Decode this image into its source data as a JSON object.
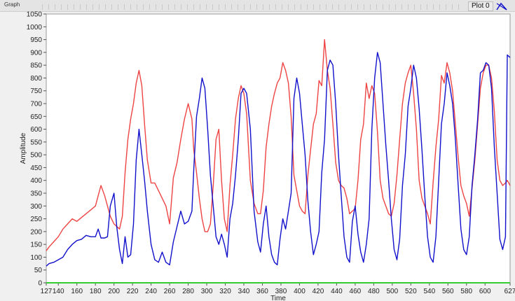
{
  "graph": {
    "label": "Graph",
    "legend_label": "Plot 0"
  },
  "chart_data": {
    "type": "line",
    "title": "",
    "xlabel": "Time",
    "ylabel": "Amplitude",
    "xlim": [
      127,
      627
    ],
    "ylim": [
      0,
      1050
    ],
    "x_ticks": [
      127,
      140,
      160,
      180,
      200,
      220,
      240,
      260,
      280,
      300,
      320,
      340,
      360,
      380,
      400,
      420,
      440,
      460,
      480,
      500,
      520,
      540,
      560,
      580,
      600,
      627
    ],
    "y_ticks": [
      0,
      50,
      100,
      150,
      200,
      250,
      300,
      350,
      400,
      450,
      500,
      550,
      600,
      650,
      700,
      750,
      800,
      850,
      900,
      950,
      1000,
      1050
    ],
    "grid": false,
    "colors": {
      "red": "#ee4444",
      "blue": "#1111cc",
      "green": "#33cc33",
      "plot_bg": "#ffffff"
    },
    "series": [
      {
        "color": "#ee4444",
        "x": [
          127,
          130,
          135,
          140,
          145,
          150,
          155,
          160,
          165,
          170,
          175,
          180,
          183,
          186,
          190,
          193,
          196,
          200,
          203,
          206,
          209,
          212,
          215,
          218,
          221,
          224,
          227,
          230,
          233,
          236,
          240,
          244,
          248,
          252,
          256,
          260,
          264,
          268,
          272,
          276,
          280,
          284,
          286,
          289,
          292,
          295,
          298,
          301,
          304,
          307,
          310,
          313,
          316,
          319,
          322,
          325,
          328,
          331,
          334,
          337,
          340,
          343,
          347,
          351,
          355,
          358,
          361,
          364,
          367,
          370,
          373,
          376,
          379,
          382,
          385,
          388,
          391,
          394,
          397,
          400,
          403,
          406,
          409,
          412,
          415,
          418,
          421,
          424,
          427,
          430,
          433,
          436,
          439,
          442,
          445,
          448,
          451,
          454,
          457,
          460,
          463,
          466,
          469,
          472,
          475,
          478,
          481,
          484,
          487,
          490,
          493,
          496,
          499,
          502,
          505,
          508,
          511,
          514,
          517,
          520,
          523,
          526,
          529,
          532,
          535,
          538,
          541,
          544,
          547,
          550,
          553,
          556,
          559,
          562,
          565,
          568,
          571,
          574,
          577,
          580,
          583,
          586,
          589,
          592,
          595,
          598,
          601,
          604,
          607,
          610,
          613,
          616,
          619,
          622,
          624,
          627
        ],
        "y": [
          125,
          140,
          160,
          180,
          210,
          230,
          250,
          240,
          255,
          270,
          285,
          300,
          340,
          380,
          340,
          300,
          260,
          230,
          220,
          210,
          260,
          430,
          560,
          640,
          700,
          780,
          830,
          770,
          620,
          480,
          390,
          390,
          360,
          330,
          300,
          230,
          410,
          470,
          560,
          640,
          700,
          640,
          520,
          430,
          330,
          250,
          200,
          200,
          230,
          380,
          560,
          600,
          400,
          250,
          200,
          380,
          500,
          640,
          720,
          770,
          740,
          660,
          400,
          310,
          270,
          270,
          360,
          530,
          620,
          690,
          740,
          780,
          800,
          860,
          830,
          780,
          650,
          420,
          360,
          300,
          280,
          270,
          420,
          520,
          620,
          660,
          790,
          770,
          950,
          830,
          760,
          620,
          470,
          400,
          380,
          370,
          330,
          270,
          280,
          290,
          400,
          560,
          620,
          780,
          720,
          770,
          740,
          590,
          400,
          330,
          300,
          270,
          260,
          310,
          420,
          560,
          700,
          780,
          820,
          850,
          740,
          600,
          400,
          330,
          300,
          270,
          230,
          390,
          530,
          640,
          810,
          780,
          860,
          820,
          750,
          620,
          490,
          380,
          340,
          310,
          260,
          370,
          480,
          620,
          760,
          820,
          850,
          850,
          800,
          670,
          480,
          400,
          380,
          390,
          400,
          380
        ]
      },
      {
        "color": "#1111cc",
        "x": [
          127,
          130,
          135,
          140,
          145,
          150,
          155,
          160,
          165,
          170,
          175,
          180,
          183,
          186,
          190,
          193,
          196,
          200,
          203,
          206,
          209,
          212,
          215,
          218,
          221,
          224,
          227,
          230,
          233,
          236,
          240,
          244,
          248,
          252,
          256,
          260,
          264,
          268,
          272,
          276,
          280,
          284,
          286,
          289,
          292,
          295,
          298,
          301,
          304,
          307,
          310,
          313,
          316,
          319,
          322,
          325,
          328,
          331,
          334,
          337,
          340,
          343,
          347,
          351,
          355,
          358,
          361,
          364,
          367,
          370,
          373,
          376,
          379,
          382,
          385,
          388,
          391,
          394,
          397,
          400,
          403,
          406,
          409,
          412,
          415,
          418,
          421,
          424,
          427,
          430,
          433,
          436,
          439,
          442,
          445,
          448,
          451,
          454,
          457,
          460,
          463,
          466,
          469,
          472,
          475,
          478,
          481,
          484,
          487,
          490,
          493,
          496,
          499,
          502,
          505,
          508,
          511,
          514,
          517,
          520,
          523,
          526,
          529,
          532,
          535,
          538,
          541,
          544,
          547,
          550,
          553,
          556,
          559,
          562,
          565,
          568,
          571,
          574,
          577,
          580,
          583,
          586,
          589,
          592,
          595,
          598,
          601,
          604,
          607,
          610,
          613,
          616,
          619,
          622,
          624,
          627
        ],
        "y": [
          65,
          75,
          80,
          90,
          100,
          130,
          150,
          165,
          170,
          185,
          180,
          180,
          210,
          175,
          175,
          180,
          300,
          350,
          220,
          130,
          75,
          180,
          100,
          110,
          230,
          480,
          600,
          500,
          400,
          280,
          150,
          90,
          80,
          120,
          80,
          70,
          160,
          220,
          280,
          230,
          240,
          280,
          440,
          650,
          720,
          800,
          760,
          600,
          420,
          300,
          180,
          150,
          190,
          150,
          100,
          250,
          310,
          420,
          560,
          740,
          760,
          740,
          600,
          280,
          160,
          120,
          230,
          300,
          180,
          110,
          80,
          70,
          170,
          250,
          210,
          280,
          350,
          720,
          800,
          740,
          620,
          500,
          320,
          200,
          110,
          150,
          200,
          430,
          560,
          830,
          870,
          850,
          700,
          500,
          340,
          180,
          100,
          80,
          240,
          300,
          190,
          120,
          80,
          150,
          250,
          600,
          800,
          900,
          860,
          700,
          540,
          400,
          250,
          130,
          90,
          170,
          380,
          500,
          690,
          760,
          850,
          800,
          680,
          520,
          340,
          180,
          100,
          80,
          180,
          400,
          620,
          700,
          820,
          770,
          700,
          560,
          380,
          210,
          130,
          110,
          180,
          380,
          500,
          640,
          820,
          830,
          860,
          850,
          760,
          530,
          350,
          170,
          130,
          180,
          890,
          880
        ]
      },
      {
        "color": "#33cc33",
        "x": [
          127,
          627
        ],
        "y": [
          0,
          0
        ]
      }
    ]
  }
}
